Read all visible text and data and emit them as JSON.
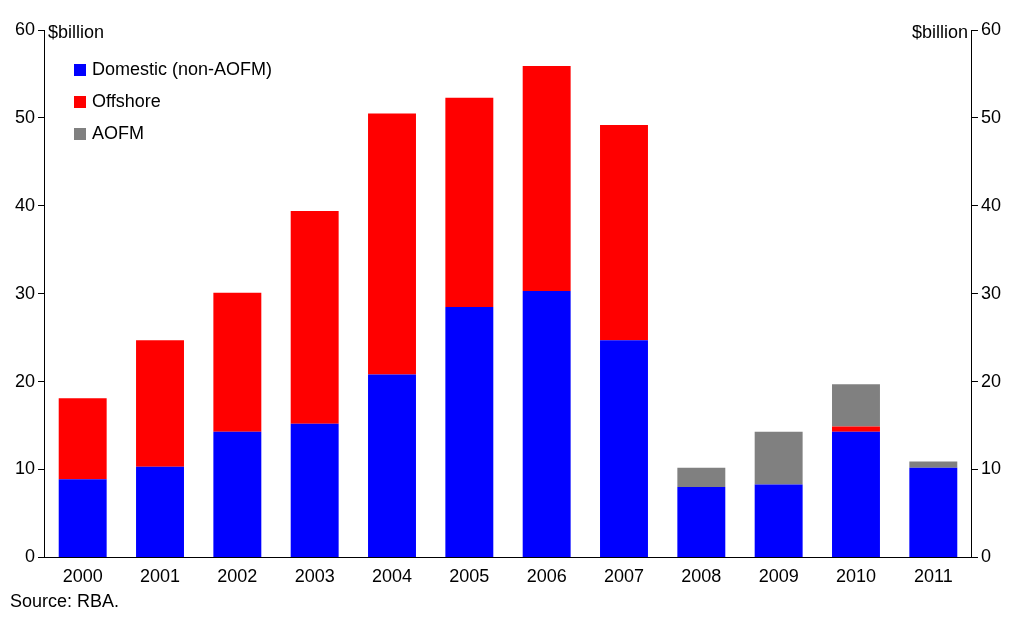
{
  "chart_data": {
    "type": "bar",
    "stacked": true,
    "ylabel": "$billion",
    "y2label": "$billion",
    "categories": [
      "2000",
      "2001",
      "2002",
      "2003",
      "2004",
      "2005",
      "2006",
      "2007",
      "2008",
      "2009",
      "2010",
      "2011"
    ],
    "series": [
      {
        "name": "Domestic (non-AOFM)",
        "color": "#0000ff",
        "values": [
          8.9,
          10.3,
          14.3,
          15.2,
          20.8,
          28.5,
          30.3,
          24.7,
          8.0,
          8.3,
          14.3,
          10.2
        ]
      },
      {
        "name": "Offshore",
        "color": "#ff0000",
        "values": [
          9.2,
          14.4,
          15.8,
          24.2,
          29.7,
          23.8,
          25.6,
          24.5,
          0,
          0,
          0.6,
          0
        ]
      },
      {
        "name": "AOFM",
        "color": "#808080",
        "values": [
          0,
          0,
          0,
          0,
          0,
          0,
          0,
          0,
          2.2,
          6.0,
          4.8,
          0.7
        ]
      }
    ],
    "ylim": [
      0,
      60
    ],
    "yticks": [
      0,
      10,
      20,
      30,
      40,
      50,
      60
    ],
    "y2lim": [
      0,
      60
    ],
    "y2ticks": [
      0,
      10,
      20,
      30,
      40,
      50,
      60
    ],
    "grid": false,
    "legend": "top left",
    "annotations": [
      "Source: RBA."
    ]
  }
}
